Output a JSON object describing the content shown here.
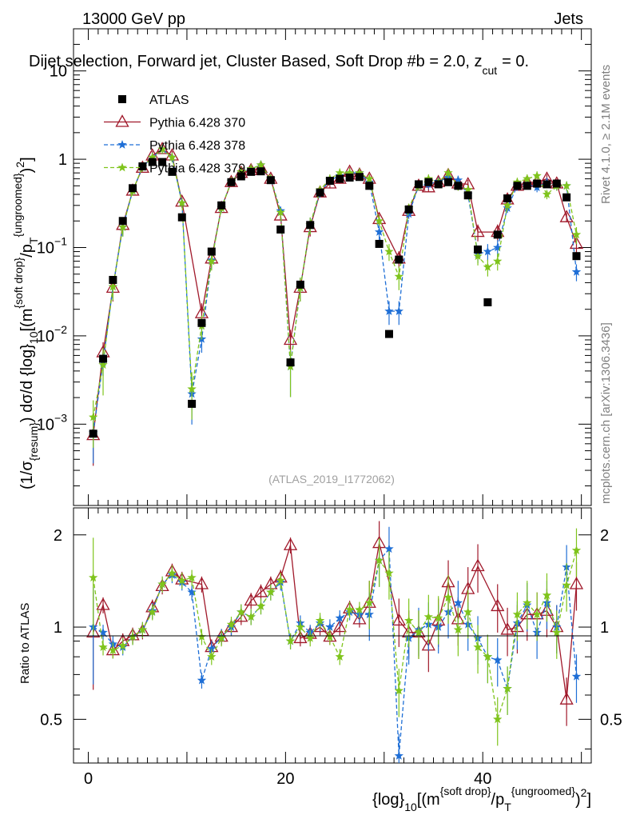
{
  "header": {
    "left": "13000 GeV pp",
    "right": "Jets"
  },
  "side_labels": {
    "rivet": "Rivet 4.1.0, ≥ 2.1M events",
    "mcplots": "mcplots.cern.ch [arXiv:1306.3436]"
  },
  "chart_data": [
    {
      "type": "scatter",
      "panel": "main",
      "title": "Dijet selection, Forward jet, Cluster Based, Soft Drop #b = 2.0, z_cut = 0.",
      "title_parts": {
        "main": "Dijet selection, Forward jet, Cluster Based, Soft Drop #b = 2.0, z",
        "sub": "cut",
        "tail": "= 0."
      },
      "watermark": "(ATLAS_2019_I1772062)",
      "ylabel": "(1/σ_{resum}) dσ/d {log}_10[(m^{soft drop}/p_T^{ungroomed})^2]",
      "yscale": "log",
      "xlim": [
        -1.5,
        51
      ],
      "ylim": [
        0.00012,
        30
      ],
      "y_ticks": [
        {
          "value": 0.001,
          "base": "10",
          "exp": "−3"
        },
        {
          "value": 0.01,
          "base": "10",
          "exp": "−2"
        },
        {
          "value": 0.1,
          "base": "10",
          "exp": "−1"
        },
        {
          "value": 1,
          "label": "1"
        },
        {
          "value": 10,
          "label": "10"
        }
      ],
      "legend": {
        "position": "top-left",
        "entries": [
          "ATLAS",
          "Pythia 6.428 370",
          "Pythia 6.428 378",
          "Pythia 6.428 379"
        ]
      },
      "series": [
        {
          "name": "ATLAS",
          "marker": "square",
          "color": "#000000",
          "x": [
            0.5,
            1.5,
            2.5,
            3.5,
            4.5,
            5.5,
            6.5,
            7.5,
            8.5,
            9.5,
            10.5,
            11.5,
            12.5,
            13.5,
            14.5,
            15.5,
            16.5,
            17.5,
            18.5,
            19.5,
            20.5,
            21.5,
            22.5,
            23.5,
            24.5,
            25.5,
            26.5,
            27.5,
            28.5,
            29.5,
            30.5,
            31.5,
            32.5,
            33.5,
            34.5,
            35.5,
            36.5,
            37.5,
            38.5,
            39.5,
            40.5,
            41.5,
            42.5,
            43.5,
            44.5,
            45.5,
            46.5,
            47.5,
            48.5,
            49.5
          ],
          "y": [
            0.00078,
            0.0055,
            0.043,
            0.2,
            0.47,
            0.83,
            0.93,
            0.93,
            0.72,
            0.22,
            0.0017,
            0.014,
            0.09,
            0.3,
            0.55,
            0.64,
            0.72,
            0.73,
            0.58,
            0.16,
            0.005,
            0.038,
            0.18,
            0.42,
            0.57,
            0.6,
            0.62,
            0.63,
            0.5,
            0.11,
            0.0105,
            0.073,
            0.27,
            0.52,
            0.55,
            0.52,
            0.55,
            0.5,
            0.39,
            0.095,
            0.024,
            0.14,
            0.36,
            0.5,
            0.5,
            0.53,
            0.52,
            0.53,
            0.37,
            0.08
          ]
        },
        {
          "name": "Pythia 6.428 370",
          "marker": "open-triangle",
          "line": "solid",
          "color": "#a0182a",
          "x": [
            0.5,
            1.5,
            2.5,
            3.5,
            4.5,
            5.5,
            6.5,
            7.5,
            8.5,
            9.5,
            11.5,
            12.5,
            13.5,
            14.5,
            15.5,
            16.5,
            17.5,
            18.5,
            19.5,
            20.5,
            21.5,
            22.5,
            23.5,
            24.5,
            25.5,
            26.5,
            27.5,
            28.5,
            29.5,
            31.5,
            32.5,
            33.5,
            34.5,
            35.5,
            36.5,
            37.5,
            38.5,
            39.5,
            41.5,
            42.5,
            43.5,
            44.5,
            45.5,
            46.5,
            47.5,
            48.5,
            49.5
          ],
          "y": [
            0.00075,
            0.0065,
            0.035,
            0.18,
            0.44,
            0.8,
            1.1,
            1.3,
            1.1,
            0.33,
            0.018,
            0.075,
            0.28,
            0.55,
            0.7,
            0.75,
            0.8,
            0.6,
            0.23,
            0.009,
            0.035,
            0.17,
            0.42,
            0.53,
            0.6,
            0.72,
            0.67,
            0.6,
            0.21,
            0.075,
            0.26,
            0.5,
            0.48,
            0.55,
            0.66,
            0.53,
            0.52,
            0.15,
            0.15,
            0.35,
            0.5,
            0.55,
            0.55,
            0.6,
            0.53,
            0.22,
            0.11
          ]
        },
        {
          "name": "Pythia 6.428 378",
          "marker": "star",
          "line": "dashed",
          "color": "#1f6fd6",
          "x": [
            0.5,
            1.5,
            2.5,
            3.5,
            4.5,
            5.5,
            6.5,
            7.5,
            8.5,
            9.5,
            10.5,
            11.5,
            12.5,
            13.5,
            14.5,
            15.5,
            16.5,
            17.5,
            18.5,
            19.5,
            20.5,
            21.5,
            22.5,
            23.5,
            24.5,
            25.5,
            26.5,
            27.5,
            28.5,
            29.5,
            30.5,
            31.5,
            32.5,
            33.5,
            34.5,
            35.5,
            36.5,
            37.5,
            38.5,
            39.5,
            40.5,
            41.5,
            42.5,
            43.5,
            44.5,
            45.5,
            46.5,
            47.5,
            48.5,
            49.5
          ],
          "y": [
            0.0008,
            0.005,
            0.036,
            0.17,
            0.44,
            0.82,
            1.05,
            1.3,
            1.05,
            0.32,
            0.0022,
            0.0092,
            0.072,
            0.28,
            0.56,
            0.72,
            0.78,
            0.86,
            0.6,
            0.26,
            0.0045,
            0.035,
            0.18,
            0.42,
            0.58,
            0.65,
            0.7,
            0.7,
            0.55,
            0.15,
            0.019,
            0.019,
            0.24,
            0.5,
            0.52,
            0.56,
            0.62,
            0.58,
            0.4,
            0.085,
            0.09,
            0.1,
            0.28,
            0.5,
            0.52,
            0.48,
            0.55,
            0.5,
            0.5,
            0.053
          ]
        },
        {
          "name": "Pythia 6.428 379",
          "marker": "star",
          "line": "dashed",
          "color": "#7fc41c",
          "x": [
            0.5,
            1.5,
            2.5,
            3.5,
            4.5,
            5.5,
            6.5,
            7.5,
            8.5,
            9.5,
            10.5,
            11.5,
            12.5,
            13.5,
            14.5,
            15.5,
            16.5,
            17.5,
            18.5,
            19.5,
            20.5,
            21.5,
            22.5,
            23.5,
            24.5,
            25.5,
            26.5,
            27.5,
            28.5,
            29.5,
            30.5,
            31.5,
            32.5,
            33.5,
            34.5,
            35.5,
            36.5,
            37.5,
            38.5,
            39.5,
            40.5,
            41.5,
            42.5,
            43.5,
            44.5,
            45.5,
            46.5,
            47.5,
            48.5,
            49.5
          ],
          "y": [
            0.0012,
            0.0047,
            0.036,
            0.17,
            0.44,
            0.82,
            1.05,
            1.3,
            1.05,
            0.32,
            0.0025,
            0.013,
            0.07,
            0.28,
            0.56,
            0.72,
            0.78,
            0.86,
            0.6,
            0.25,
            0.0045,
            0.035,
            0.18,
            0.45,
            0.6,
            0.7,
            0.7,
            0.7,
            0.6,
            0.2,
            0.09,
            0.047,
            0.28,
            0.5,
            0.6,
            0.55,
            0.7,
            0.5,
            0.45,
            0.08,
            0.06,
            0.07,
            0.3,
            0.55,
            0.6,
            0.65,
            0.4,
            0.5,
            0.5,
            0.14
          ]
        }
      ]
    },
    {
      "type": "scatter",
      "panel": "ratio",
      "xlabel": "{log}_10[(m^{soft drop}/p_T^{ungroomed})^2]",
      "ylabel": "Ratio to ATLAS",
      "yscale": "log",
      "xlim": [
        -1.5,
        51
      ],
      "ylim": [
        0.36,
        2.45
      ],
      "x_ticks": [
        0,
        20,
        40
      ],
      "y_ticks": [
        0.5,
        1,
        2
      ],
      "reference_line": 1,
      "series": [
        {
          "name": "Pythia 6.428 370",
          "color": "#a0182a",
          "marker": "open-triangle",
          "line": "solid",
          "x": [
            0.5,
            1.5,
            2.5,
            3.5,
            4.5,
            5.5,
            6.5,
            7.5,
            8.5,
            9.5,
            11.5,
            12.5,
            13.5,
            14.5,
            15.5,
            16.5,
            17.5,
            18.5,
            19.5,
            20.5,
            21.5,
            22.5,
            23.5,
            24.5,
            25.5,
            26.5,
            27.5,
            28.5,
            29.5,
            31.5,
            32.5,
            33.5,
            34.5,
            35.5,
            36.5,
            37.5,
            38.5,
            39.5,
            41.5,
            42.5,
            43.5,
            44.5,
            45.5,
            46.5,
            47.5,
            48.5,
            49.5
          ],
          "y": [
            0.96,
            1.18,
            0.84,
            0.9,
            0.94,
            0.97,
            1.16,
            1.36,
            1.52,
            1.43,
            1.38,
            0.86,
            0.93,
            1.0,
            1.08,
            1.22,
            1.3,
            1.38,
            1.45,
            1.85,
            0.92,
            0.95,
            1.0,
            0.93,
            1.0,
            1.15,
            1.06,
            1.2,
            1.88,
            1.05,
            0.96,
            0.96,
            0.87,
            1.05,
            1.4,
            1.06,
            1.33,
            1.58,
            1.17,
            0.98,
            1.0,
            1.1,
            1.1,
            1.13,
            1.0,
            0.58,
            1.38
          ]
        },
        {
          "name": "Pythia 6.428 378",
          "color": "#1f6fd6",
          "marker": "star",
          "line": "dashed",
          "x": [
            0.5,
            1.5,
            2.5,
            3.5,
            4.5,
            5.5,
            6.5,
            7.5,
            8.5,
            9.5,
            10.5,
            11.5,
            12.5,
            13.5,
            14.5,
            15.5,
            16.5,
            17.5,
            18.5,
            19.5,
            20.5,
            21.5,
            22.5,
            23.5,
            24.5,
            25.5,
            26.5,
            27.5,
            28.5,
            29.5,
            30.5,
            31.5,
            32.5,
            33.5,
            34.5,
            35.5,
            36.5,
            37.5,
            38.5,
            39.5,
            40.5,
            41.5,
            42.5,
            43.5,
            44.5,
            45.5,
            46.5,
            47.5,
            48.5,
            49.5
          ],
          "y": [
            1.0,
            0.96,
            0.88,
            0.86,
            0.93,
            0.98,
            1.13,
            1.38,
            1.48,
            1.4,
            1.3,
            0.67,
            0.85,
            0.93,
            1.0,
            1.12,
            1.08,
            1.17,
            1.3,
            1.4,
            0.9,
            1.03,
            0.96,
            1.03,
            1.0,
            1.07,
            1.12,
            1.1,
            1.1,
            1.65,
            1.8,
            0.38,
            0.92,
            0.98,
            1.02,
            1.0,
            1.12,
            1.2,
            1.02,
            0.92,
            0.8,
            0.78,
            0.63,
            1.03,
            1.18,
            0.96,
            1.2,
            1.0,
            1.57,
            0.69
          ]
        },
        {
          "name": "Pythia 6.428 379",
          "color": "#7fc41c",
          "marker": "star",
          "line": "dashed",
          "x": [
            0.5,
            1.5,
            2.5,
            3.5,
            4.5,
            5.5,
            6.5,
            7.5,
            8.5,
            9.5,
            10.5,
            11.5,
            12.5,
            13.5,
            14.5,
            15.5,
            16.5,
            17.5,
            18.5,
            19.5,
            20.5,
            21.5,
            22.5,
            23.5,
            24.5,
            25.5,
            26.5,
            27.5,
            28.5,
            29.5,
            30.5,
            31.5,
            32.5,
            33.5,
            34.5,
            35.5,
            36.5,
            37.5,
            38.5,
            39.5,
            40.5,
            41.5,
            42.5,
            43.5,
            44.5,
            45.5,
            46.5,
            47.5,
            48.5,
            49.5
          ],
          "y": [
            1.45,
            0.86,
            0.84,
            0.87,
            0.93,
            0.98,
            1.12,
            1.38,
            1.5,
            1.42,
            1.45,
            0.93,
            0.8,
            0.92,
            1.02,
            1.12,
            1.08,
            1.17,
            1.3,
            1.42,
            0.9,
            1.0,
            0.92,
            1.05,
            0.93,
            0.8,
            1.14,
            1.14,
            1.2,
            1.65,
            1.5,
            0.62,
            1.05,
            0.96,
            1.08,
            1.07,
            1.25,
            0.98,
            1.12,
            0.86,
            0.8,
            0.5,
            0.63,
            1.1,
            1.2,
            1.1,
            1.27,
            0.96,
            1.37,
            1.78
          ]
        }
      ]
    }
  ]
}
